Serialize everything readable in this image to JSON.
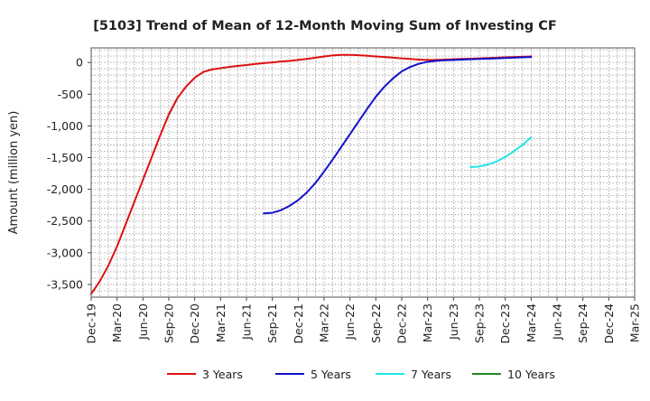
{
  "chart_data": {
    "type": "line",
    "title": "[5103]  Trend of Mean of 12-Month Moving Sum of Investing CF",
    "ylabel": "Amount (million yen)",
    "xlabel": "",
    "ylim": [
      -3700,
      230
    ],
    "yticks": [
      0,
      -500,
      -1000,
      -1500,
      -2000,
      -2500,
      -3000,
      -3500
    ],
    "ytick_labels": [
      "0",
      "-500",
      "-1,000",
      "-1,500",
      "-2,000",
      "-2,500",
      "-3,000",
      "-3,500"
    ],
    "xticks": [
      "Dec-19",
      "Mar-20",
      "Jun-20",
      "Sep-20",
      "Dec-20",
      "Mar-21",
      "Jun-21",
      "Sep-21",
      "Dec-21",
      "Mar-22",
      "Jun-22",
      "Sep-22",
      "Dec-22",
      "Mar-23",
      "Jun-23",
      "Sep-23",
      "Dec-23",
      "Mar-24",
      "Jun-24",
      "Sep-24",
      "Dec-24",
      "Mar-25"
    ],
    "grid": true,
    "legend_position": "bottom",
    "series": [
      {
        "name": "3 Years",
        "color": "#dd1111",
        "x": [
          "Dec-19",
          "Jan-20",
          "Feb-20",
          "Mar-20",
          "Apr-20",
          "May-20",
          "Jun-20",
          "Jul-20",
          "Aug-20",
          "Sep-20",
          "Oct-20",
          "Nov-20",
          "Dec-20",
          "Jan-21",
          "Feb-21",
          "Mar-21",
          "Apr-21",
          "May-21",
          "Jun-21",
          "Jul-21",
          "Aug-21",
          "Sep-21",
          "Oct-21",
          "Nov-21",
          "Dec-21",
          "Jan-22",
          "Feb-22",
          "Mar-22",
          "Apr-22",
          "May-22",
          "Jun-22",
          "Jul-22",
          "Aug-22",
          "Sep-22",
          "Oct-22",
          "Nov-22",
          "Dec-22",
          "Jan-23",
          "Feb-23",
          "Mar-23",
          "Apr-23",
          "May-23",
          "Jun-23",
          "Jul-23",
          "Aug-23",
          "Sep-23",
          "Oct-23",
          "Nov-23",
          "Dec-23",
          "Jan-24",
          "Feb-24",
          "Mar-24"
        ],
        "values": [
          -3650,
          -3450,
          -3200,
          -2900,
          -2550,
          -2200,
          -1850,
          -1500,
          -1150,
          -820,
          -560,
          -380,
          -240,
          -150,
          -110,
          -90,
          -70,
          -55,
          -40,
          -25,
          -10,
          0,
          15,
          25,
          40,
          55,
          75,
          95,
          110,
          120,
          120,
          115,
          105,
          95,
          85,
          75,
          65,
          55,
          45,
          40,
          40,
          45,
          50,
          55,
          60,
          65,
          70,
          75,
          80,
          85,
          90,
          95
        ]
      },
      {
        "name": "5 Years",
        "color": "#1111cc",
        "x": [
          "Aug-21",
          "Sep-21",
          "Oct-21",
          "Nov-21",
          "Dec-21",
          "Jan-22",
          "Feb-22",
          "Mar-22",
          "Apr-22",
          "May-22",
          "Jun-22",
          "Jul-22",
          "Aug-22",
          "Sep-22",
          "Oct-22",
          "Nov-22",
          "Dec-22",
          "Jan-23",
          "Feb-23",
          "Mar-23",
          "Apr-23",
          "May-23",
          "Jun-23",
          "Jul-23",
          "Aug-23",
          "Sep-23",
          "Oct-23",
          "Nov-23",
          "Dec-23",
          "Jan-24",
          "Feb-24",
          "Mar-24"
        ],
        "values": [
          -2380,
          -2370,
          -2330,
          -2260,
          -2170,
          -2050,
          -1900,
          -1720,
          -1530,
          -1330,
          -1130,
          -930,
          -730,
          -540,
          -380,
          -250,
          -140,
          -70,
          -20,
          10,
          25,
          35,
          40,
          45,
          50,
          55,
          60,
          65,
          70,
          75,
          80,
          85
        ]
      },
      {
        "name": "7 Years",
        "color": "#22e6e6",
        "x": [
          "Aug-23",
          "Sep-23",
          "Oct-23",
          "Nov-23",
          "Dec-23",
          "Jan-24",
          "Feb-24",
          "Mar-24"
        ],
        "values": [
          -1650,
          -1640,
          -1610,
          -1560,
          -1490,
          -1400,
          -1300,
          -1180
        ]
      },
      {
        "name": "10 Years",
        "color": "#228822",
        "x": [],
        "values": []
      }
    ]
  }
}
